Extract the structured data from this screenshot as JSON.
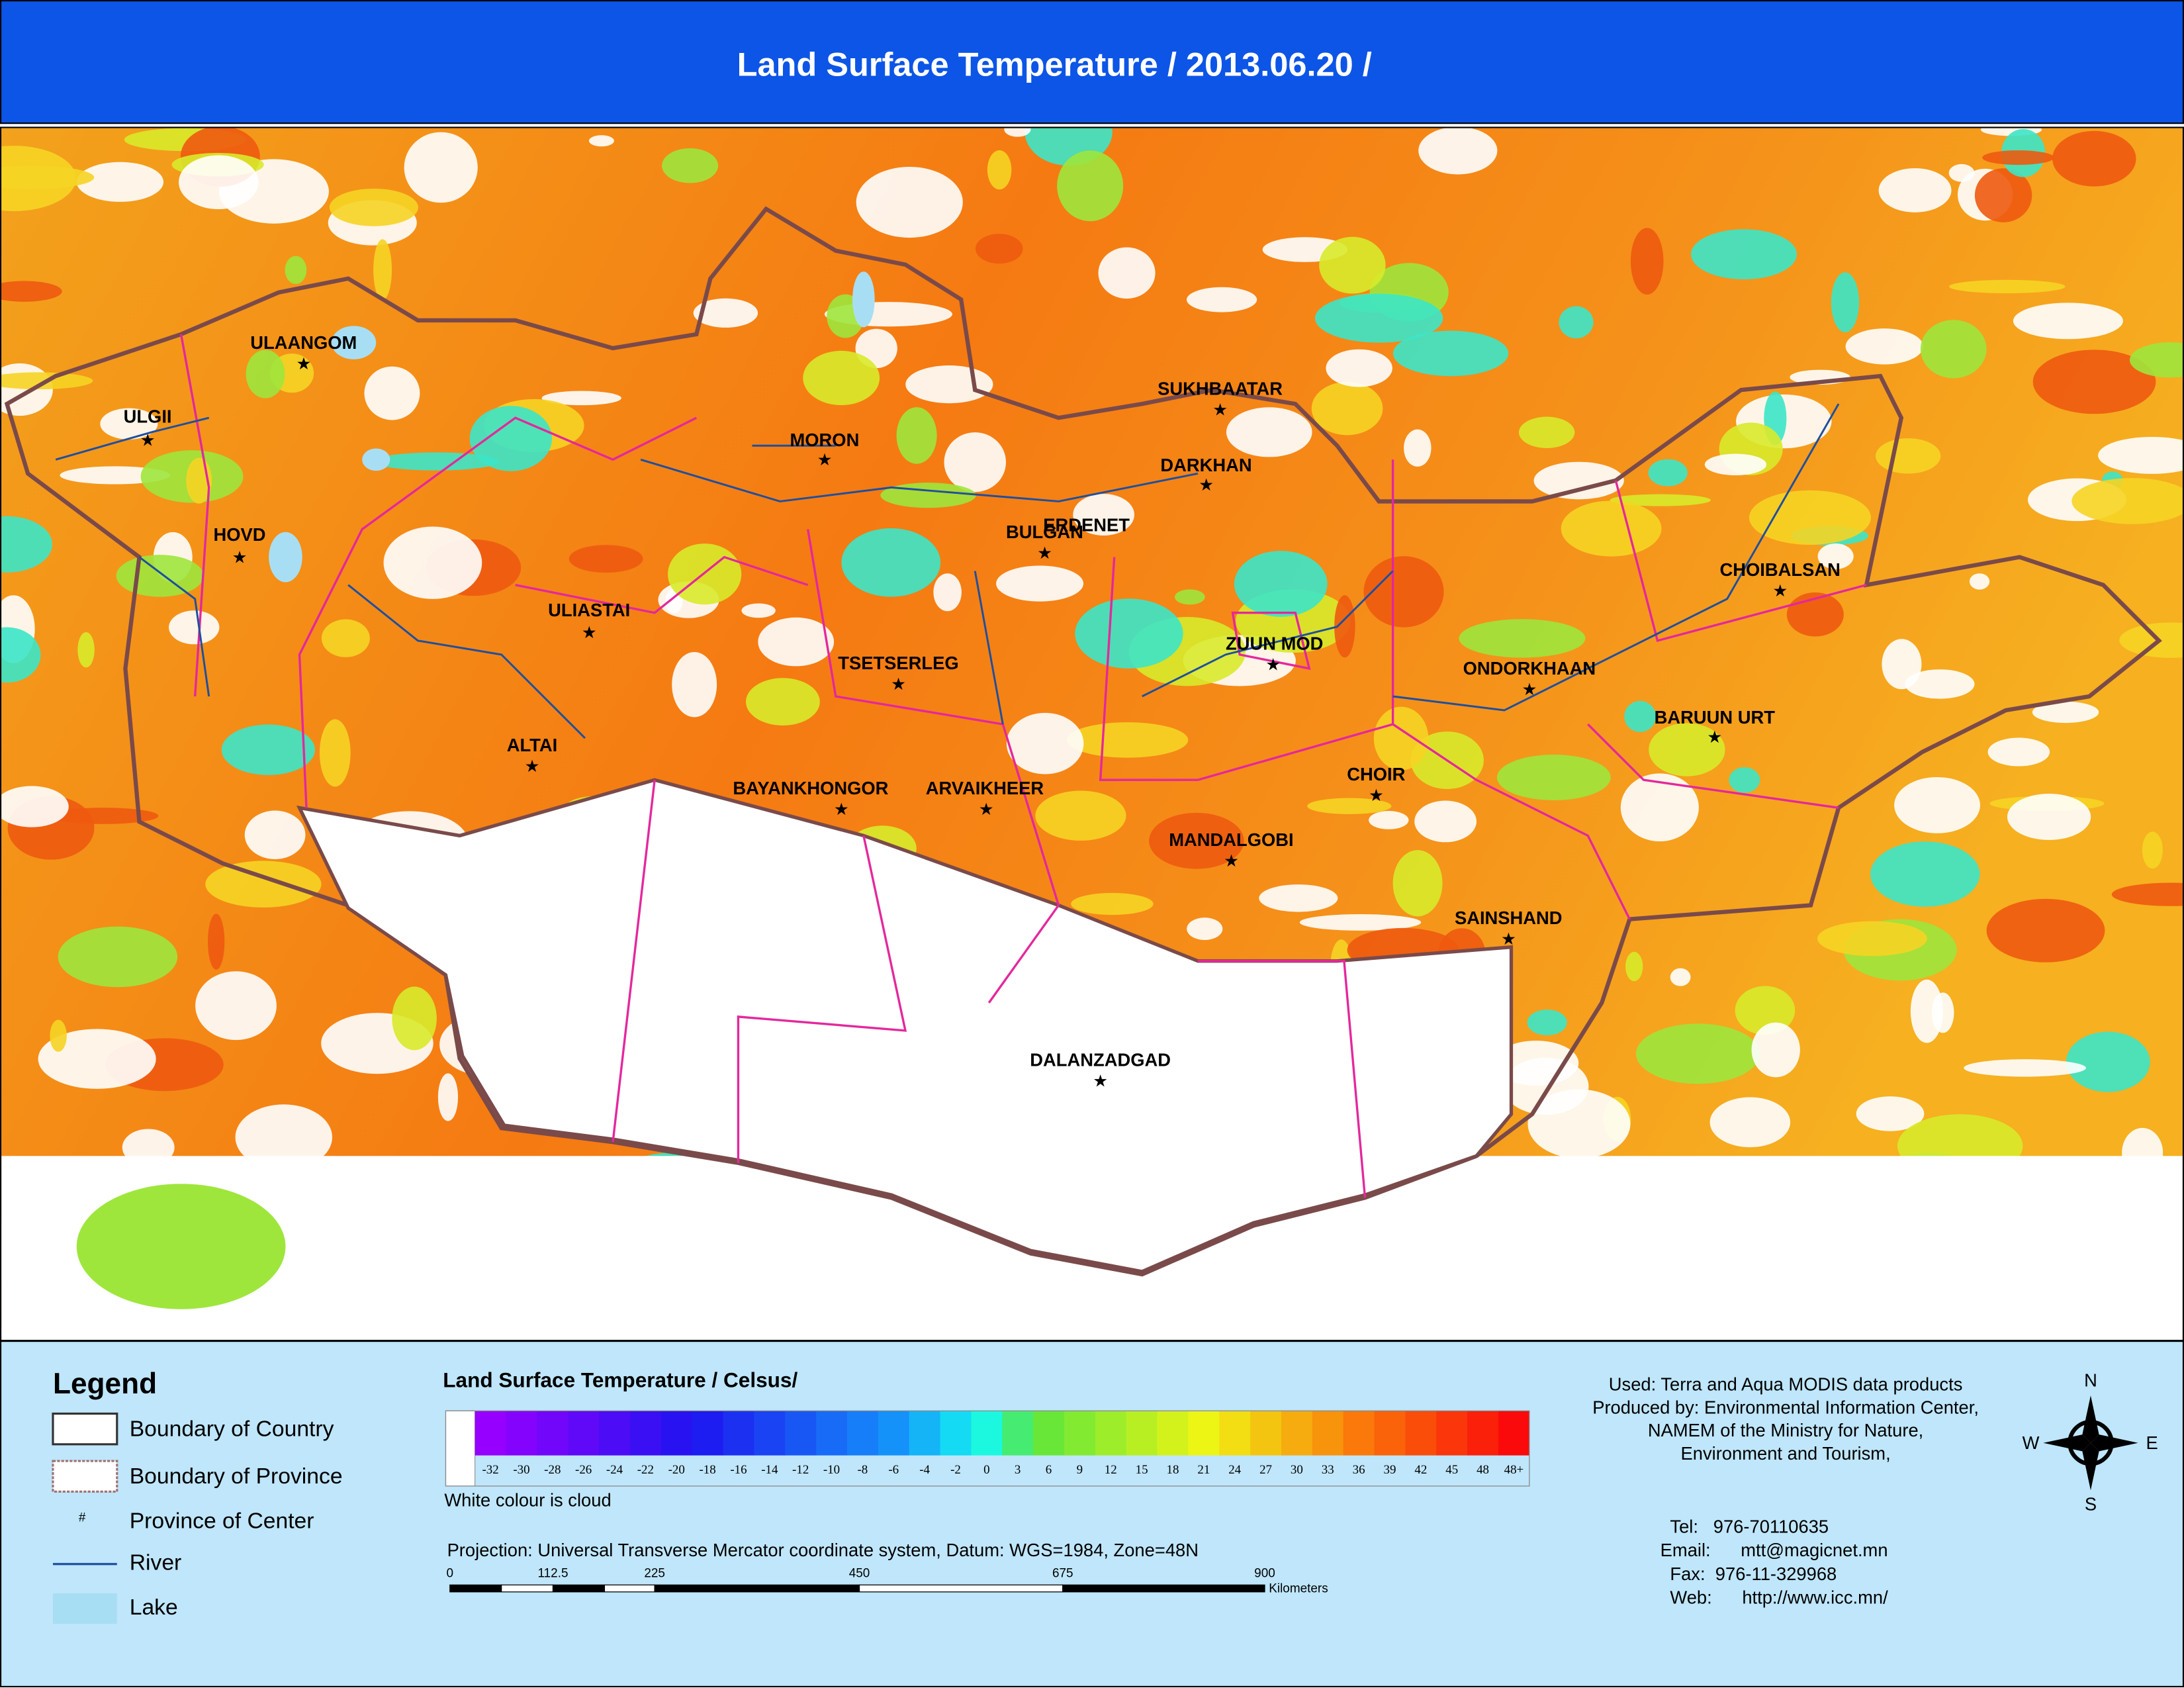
{
  "title": "Land Surface Temperature / 2013.06.20 /",
  "map": {
    "cities": [
      {
        "name": "ULAANGOM"
      },
      {
        "name": "ULGII"
      },
      {
        "name": "HOVD"
      },
      {
        "name": "ULIASTAI"
      },
      {
        "name": "ALTAI"
      },
      {
        "name": "MORON"
      },
      {
        "name": "TSETSERLEG"
      },
      {
        "name": "BAYANKHONGOR"
      },
      {
        "name": "ARVAIKHEER"
      },
      {
        "name": "BULGAN"
      },
      {
        "name": "ERDENET"
      },
      {
        "name": "SUKHBAATAR"
      },
      {
        "name": "DARKHAN"
      },
      {
        "name": "ZUUN MOD"
      },
      {
        "name": "CHOIR"
      },
      {
        "name": "MANDALGOBI"
      },
      {
        "name": "DALANZADGAD"
      },
      {
        "name": "SAINSHAND"
      },
      {
        "name": "ONDORKHAAN"
      },
      {
        "name": "BARUUN URT"
      },
      {
        "name": "CHOIBALSAN"
      }
    ]
  },
  "legend": {
    "title": "Legend",
    "items": [
      "Boundary of Country",
      "Boundary of Province",
      "Province of Center",
      "River",
      "Lake"
    ],
    "center_symbol": "#"
  },
  "colorbar": {
    "title": "Land Surface Temperature / Celsus/",
    "labels": [
      "-32",
      "-30",
      "-28",
      "-26",
      "-24",
      "-22",
      "-20",
      "-18",
      "-16",
      "-14",
      "-12",
      "-10",
      "-8",
      "-6",
      "-4",
      "-2",
      "0",
      "3",
      "6",
      "9",
      "12",
      "15",
      "18",
      "21",
      "24",
      "27",
      "30",
      "33",
      "36",
      "39",
      "42",
      "45",
      "48",
      "48+"
    ],
    "note": "White colour is cloud"
  },
  "projection": "Projection: Universal Transverse Mercator coordinate system, Datum: WGS=1984, Zone=48N",
  "scale": {
    "ticks": [
      "0",
      "112.5",
      "225",
      "450",
      "675",
      "900"
    ],
    "unit": "Kilometers"
  },
  "credits": [
    "Used: Terra and Aqua MODIS data products",
    "Produced by: Environmental Information Center,",
    "NAMEM of the Ministry for Nature,",
    "Environment and Tourism,"
  ],
  "contacts": [
    "Tel:   976-70110635",
    "Email:      mtt@magicnet.mn",
    "Fax:  976-11-329968",
    "Web:      http://www.icc.mn/"
  ],
  "compass": {
    "n": "N",
    "s": "S",
    "w": "W",
    "e": "E"
  }
}
